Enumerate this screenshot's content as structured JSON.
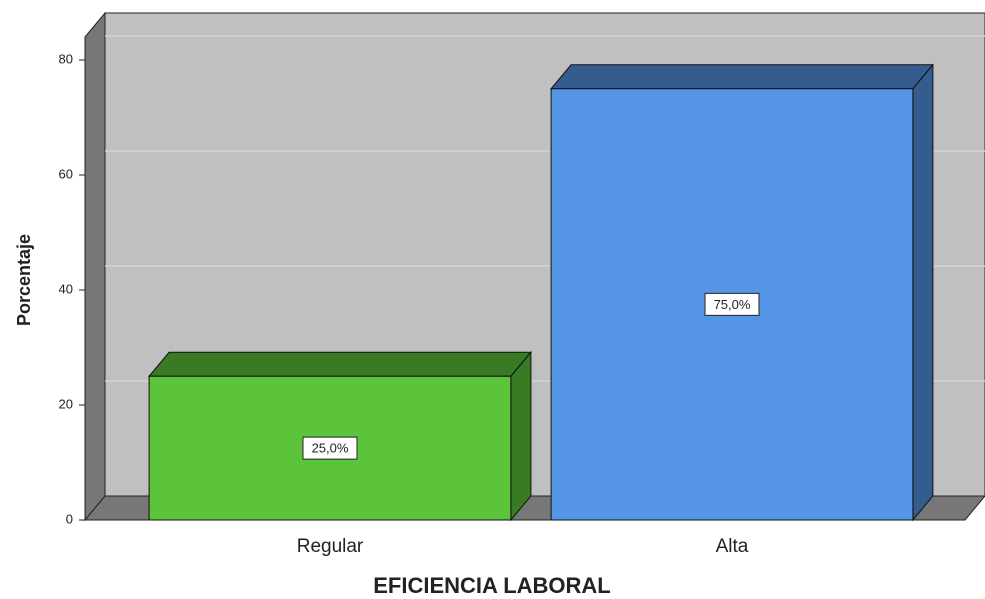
{
  "chart_data": {
    "type": "bar3d",
    "x_label": "EFICIENCIA LABORAL",
    "y_label": "Porcentaje",
    "categories": [
      "Regular",
      "Alta"
    ],
    "values": [
      25,
      75
    ],
    "value_labels": [
      "25,0%",
      "75,0%"
    ],
    "colors": [
      "#5cc43a",
      "#5595e5"
    ],
    "ylim": [
      0,
      84
    ],
    "yticks": [
      0,
      20,
      40,
      60,
      80
    ],
    "grid": true
  }
}
